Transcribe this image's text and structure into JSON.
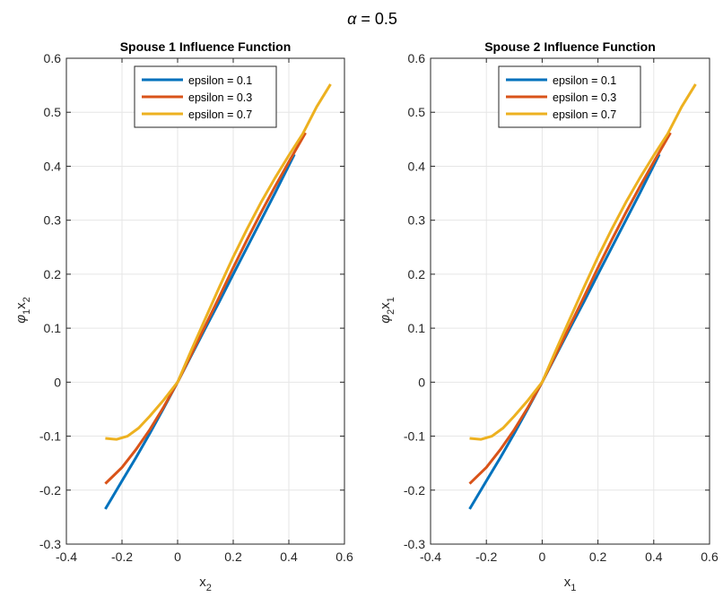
{
  "suptitle": {
    "symbol": "α",
    "text": " = 0.5"
  },
  "colors": {
    "eps_0_1": "#0072BD",
    "eps_0_3": "#D95319",
    "eps_0_7": "#EDB120",
    "grid": "#e6e6e6",
    "axes": "#262626"
  },
  "chart_data": [
    {
      "type": "line",
      "title": "Spouse 1 Influence Function",
      "xlabel": {
        "base": "x",
        "sub": "2"
      },
      "ylabel": {
        "phi": "φ",
        "phi_sub": "1",
        "base": "x",
        "sub": "2"
      },
      "xlim": [
        -0.4,
        0.6
      ],
      "ylim": [
        -0.3,
        0.6
      ],
      "xticks": [
        "-0.4",
        "-0.2",
        "0",
        "0.2",
        "0.4",
        "0.6"
      ],
      "yticks": [
        "-0.3",
        "-0.2",
        "-0.1",
        "0",
        "0.1",
        "0.2",
        "0.3",
        "0.4",
        "0.5",
        "0.6"
      ],
      "grid": true,
      "legend_position": "top-center",
      "series": [
        {
          "name": "epsilon = 0.1",
          "color": "#0072BD",
          "x": [
            -0.26,
            -0.2,
            -0.15,
            -0.1,
            -0.05,
            0,
            0.05,
            0.1,
            0.15,
            0.2,
            0.25,
            0.3,
            0.35,
            0.42
          ],
          "y": [
            -0.235,
            -0.183,
            -0.14,
            -0.095,
            -0.048,
            0,
            0.05,
            0.1,
            0.149,
            0.2,
            0.25,
            0.3,
            0.35,
            0.422
          ]
        },
        {
          "name": "epsilon = 0.3",
          "color": "#D95319",
          "x": [
            -0.26,
            -0.2,
            -0.15,
            -0.1,
            -0.05,
            0,
            0.05,
            0.1,
            0.15,
            0.2,
            0.25,
            0.3,
            0.35,
            0.4,
            0.46
          ],
          "y": [
            -0.188,
            -0.158,
            -0.125,
            -0.088,
            -0.046,
            0,
            0.052,
            0.105,
            0.158,
            0.212,
            0.264,
            0.314,
            0.362,
            0.408,
            0.462
          ]
        },
        {
          "name": "epsilon = 0.7",
          "color": "#EDB120",
          "x": [
            -0.26,
            -0.22,
            -0.18,
            -0.14,
            -0.1,
            -0.05,
            0,
            0.05,
            0.1,
            0.15,
            0.2,
            0.25,
            0.3,
            0.35,
            0.4,
            0.45,
            0.5,
            0.55
          ],
          "y": [
            -0.104,
            -0.106,
            -0.1,
            -0.085,
            -0.063,
            -0.033,
            0,
            0.06,
            0.118,
            0.176,
            0.232,
            0.284,
            0.333,
            0.378,
            0.42,
            0.46,
            0.51,
            0.552
          ]
        }
      ]
    },
    {
      "type": "line",
      "title": "Spouse 2 Influence Function",
      "xlabel": {
        "base": "x",
        "sub": "1"
      },
      "ylabel": {
        "phi": "φ",
        "phi_sub": "2",
        "base": "x",
        "sub": "1"
      },
      "xlim": [
        -0.4,
        0.6
      ],
      "ylim": [
        -0.3,
        0.6
      ],
      "xticks": [
        "-0.4",
        "-0.2",
        "0",
        "0.2",
        "0.4",
        "0.6"
      ],
      "yticks": [
        "-0.3",
        "-0.2",
        "-0.1",
        "0",
        "0.1",
        "0.2",
        "0.3",
        "0.4",
        "0.5",
        "0.6"
      ],
      "grid": true,
      "legend_position": "top-center",
      "series": [
        {
          "name": "epsilon = 0.1",
          "color": "#0072BD",
          "x": [
            -0.26,
            -0.2,
            -0.15,
            -0.1,
            -0.05,
            0,
            0.05,
            0.1,
            0.15,
            0.2,
            0.25,
            0.3,
            0.35,
            0.42
          ],
          "y": [
            -0.235,
            -0.183,
            -0.14,
            -0.095,
            -0.048,
            0,
            0.05,
            0.1,
            0.149,
            0.2,
            0.25,
            0.3,
            0.35,
            0.422
          ]
        },
        {
          "name": "epsilon = 0.3",
          "color": "#D95319",
          "x": [
            -0.26,
            -0.2,
            -0.15,
            -0.1,
            -0.05,
            0,
            0.05,
            0.1,
            0.15,
            0.2,
            0.25,
            0.3,
            0.35,
            0.4,
            0.46
          ],
          "y": [
            -0.188,
            -0.158,
            -0.125,
            -0.088,
            -0.046,
            0,
            0.052,
            0.105,
            0.158,
            0.212,
            0.264,
            0.314,
            0.362,
            0.408,
            0.462
          ]
        },
        {
          "name": "epsilon = 0.7",
          "color": "#EDB120",
          "x": [
            -0.26,
            -0.22,
            -0.18,
            -0.14,
            -0.1,
            -0.05,
            0,
            0.05,
            0.1,
            0.15,
            0.2,
            0.25,
            0.3,
            0.35,
            0.4,
            0.45,
            0.5,
            0.55
          ],
          "y": [
            -0.104,
            -0.106,
            -0.1,
            -0.085,
            -0.063,
            -0.033,
            0,
            0.06,
            0.118,
            0.176,
            0.232,
            0.284,
            0.333,
            0.378,
            0.42,
            0.46,
            0.51,
            0.552
          ]
        }
      ]
    }
  ]
}
